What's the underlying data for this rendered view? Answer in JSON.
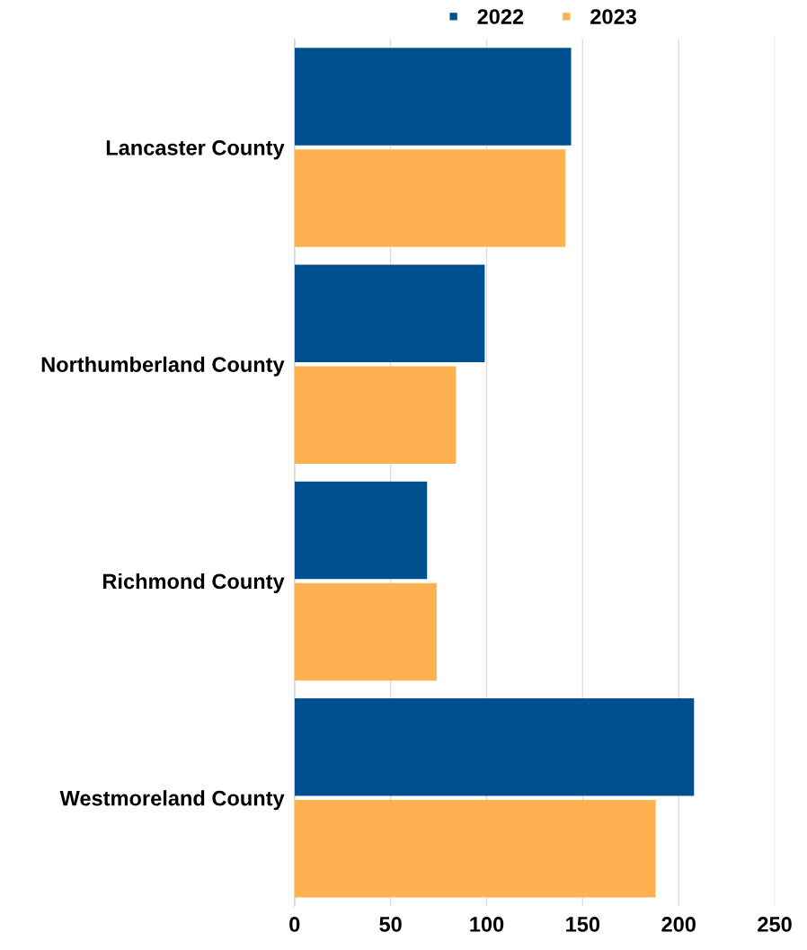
{
  "chart_data": {
    "type": "bar",
    "orientation": "horizontal",
    "categories": [
      "Lancaster County",
      "Northumberland County",
      "Richmond County",
      "Westmoreland County"
    ],
    "series": [
      {
        "name": "2022",
        "color": "#00508f",
        "values": [
          144,
          99,
          69,
          208
        ]
      },
      {
        "name": "2023",
        "color": "#fdb151",
        "values": [
          141,
          84,
          74,
          188
        ]
      }
    ],
    "xlim": [
      0,
      250
    ],
    "xticks": [
      0,
      50,
      100,
      150,
      200,
      250
    ],
    "grid": "x",
    "legend": "top"
  }
}
